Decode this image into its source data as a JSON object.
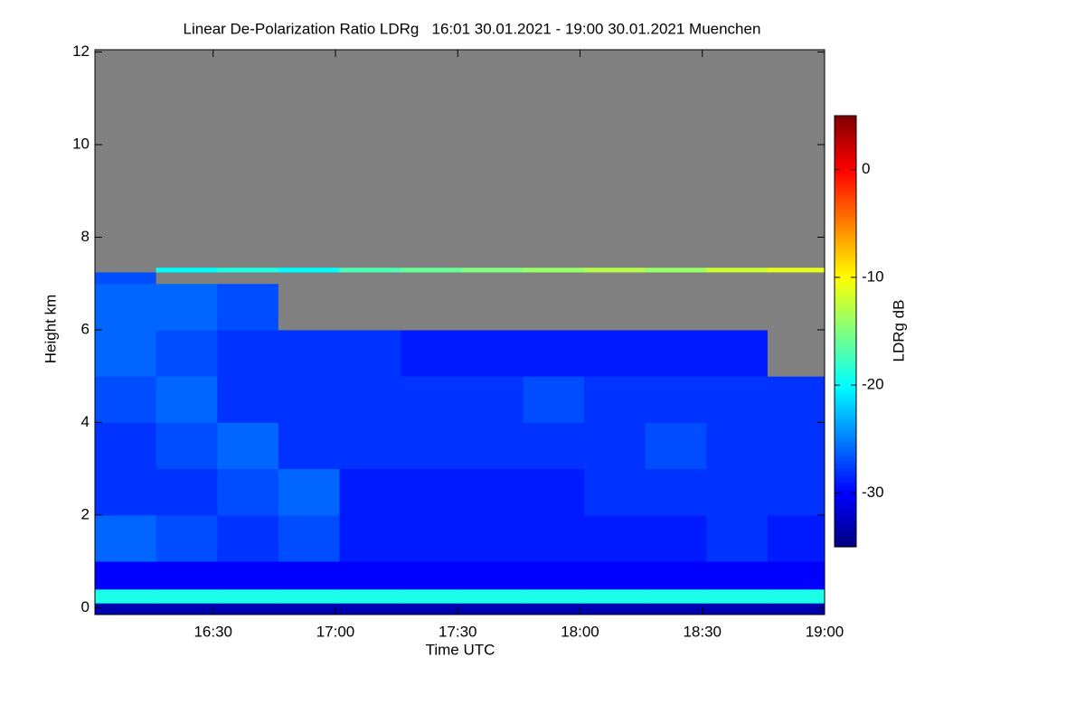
{
  "chart_data": {
    "type": "heatmap",
    "title": "Linear De-Polarization Ratio LDRg   16:01 30.01.2021 - 19:00 30.01.2021 Muenchen",
    "x_label": "Time UTC",
    "y_label": "Height km",
    "colorbar_label": "LDRg dB",
    "xlim": [
      961,
      1140
    ],
    "xticks": [
      {
        "value": 990,
        "label": "16:30"
      },
      {
        "value": 1020,
        "label": "17:00"
      },
      {
        "value": 1050,
        "label": "17:30"
      },
      {
        "value": 1080,
        "label": "18:00"
      },
      {
        "value": 1110,
        "label": "18:30"
      },
      {
        "value": 1140,
        "label": "19:00"
      }
    ],
    "ylim": [
      -0.15,
      12.05
    ],
    "yticks": [
      0,
      2,
      4,
      6,
      8,
      10,
      12
    ],
    "clim": [
      -35,
      5
    ],
    "cticks": [
      0,
      -10,
      -20,
      -30
    ],
    "colormap": "jet",
    "nodata_color": "#808080",
    "x_edges": [
      961,
      976,
      991,
      1006,
      1021,
      1036,
      1051,
      1066,
      1081,
      1096,
      1111,
      1126,
      1140
    ],
    "y_edges": [
      -0.15,
      0.1,
      0.4,
      1,
      2,
      3,
      4,
      5,
      6,
      7,
      7.25,
      7.35,
      8,
      12.05
    ],
    "z": [
      [
        -33,
        -33,
        -33,
        -33,
        -33,
        -33,
        -33,
        -33,
        -33,
        -33,
        -33,
        -33
      ],
      [
        -19,
        -19,
        -19,
        -19,
        -19,
        -19,
        -19,
        -19,
        -19,
        -19,
        -19,
        -19
      ],
      [
        -30,
        -30,
        -30,
        -30,
        -30,
        -30,
        -30,
        -30,
        -30,
        -30,
        -30,
        -30
      ],
      [
        -26,
        -27,
        -28,
        -27,
        -29,
        -29,
        -29,
        -29,
        -29,
        -29,
        -28,
        -29
      ],
      [
        -28,
        -28,
        -27,
        -26,
        -29,
        -29,
        -29,
        -29,
        -28,
        -28,
        -28,
        -28
      ],
      [
        -28,
        -27,
        -26,
        -28,
        -28,
        -28,
        -28,
        -28,
        -28,
        -27,
        -28,
        -28
      ],
      [
        -27,
        -26,
        -28,
        -28,
        -28,
        -28,
        -28,
        -27,
        -28,
        -28,
        -28,
        -28
      ],
      [
        -26,
        -27,
        -28,
        -28,
        -28,
        -29,
        -29,
        -29,
        -29,
        -29,
        -29,
        null
      ],
      [
        -26,
        -26,
        -27,
        null,
        null,
        null,
        null,
        null,
        null,
        null,
        null,
        null
      ],
      [
        -27,
        null,
        null,
        null,
        null,
        null,
        null,
        null,
        null,
        null,
        null,
        null
      ],
      [
        null,
        -20,
        -19,
        -20,
        -17,
        -16,
        -15,
        -14,
        -13,
        -14,
        -12,
        -11
      ],
      [
        null,
        null,
        null,
        null,
        null,
        null,
        null,
        null,
        null,
        null,
        null,
        null
      ],
      [
        null,
        null,
        null,
        null,
        null,
        null,
        null,
        null,
        null,
        null,
        null,
        null
      ]
    ]
  }
}
